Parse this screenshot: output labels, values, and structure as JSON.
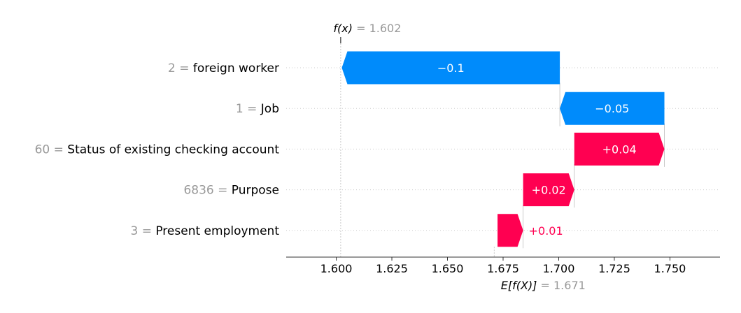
{
  "chart_data": {
    "type": "waterfall",
    "fx": {
      "label_prefix": "f(x)",
      "eq": "=",
      "value_text": "1.602",
      "value": 1.602
    },
    "base": {
      "label_prefix": "E[f(X)]",
      "eq": "=",
      "value_text": "1.671",
      "value": 1.671
    },
    "features": [
      {
        "value_text": "2",
        "eq": "=",
        "name": "foreign worker",
        "label": "−0.1",
        "start": 1.7005,
        "end": 1.6025
      },
      {
        "value_text": "1",
        "eq": "=",
        "name": "Job",
        "label": "−0.05",
        "start": 1.7475,
        "end": 1.7005
      },
      {
        "value_text": "60",
        "eq": "=",
        "name": "Status of existing checking account",
        "label": "+0.04",
        "start": 1.707,
        "end": 1.7475
      },
      {
        "value_text": "6836",
        "eq": "=",
        "name": "Purpose",
        "label": "+0.02",
        "start": 1.684,
        "end": 1.707
      },
      {
        "value_text": "3",
        "eq": "=",
        "name": "Present employment",
        "label": "+0.01",
        "start": 1.6725,
        "end": 1.684
      }
    ],
    "x_ticks": [
      "1.600",
      "1.625",
      "1.650",
      "1.675",
      "1.700",
      "1.725",
      "1.750"
    ],
    "xlim": [
      1.5775,
      1.7725
    ],
    "colors": {
      "positive": "#ff0051",
      "negative": "#008bfb",
      "muted": "#999999"
    }
  }
}
